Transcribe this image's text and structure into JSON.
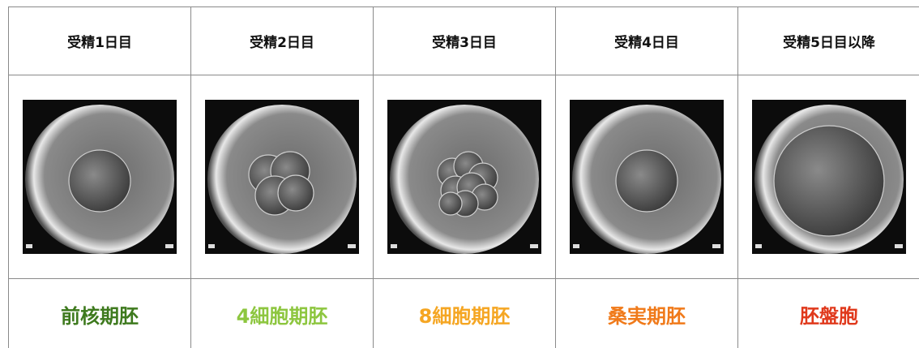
{
  "table": {
    "header": [
      "受精1日目",
      "受精2日目",
      "受精3日目",
      "受精4日目",
      "受精5日目以降"
    ],
    "stages": [
      {
        "label": "前核期胚",
        "color": "#3e7a1e"
      },
      {
        "label": "4細胞期胚",
        "color": "#8dc63f"
      },
      {
        "label": "8細胞期胚",
        "color": "#f5a623"
      },
      {
        "label": "桑実期胚",
        "color": "#f07a1a"
      },
      {
        "label": "胚盤胞",
        "color": "#e0391c"
      }
    ]
  }
}
